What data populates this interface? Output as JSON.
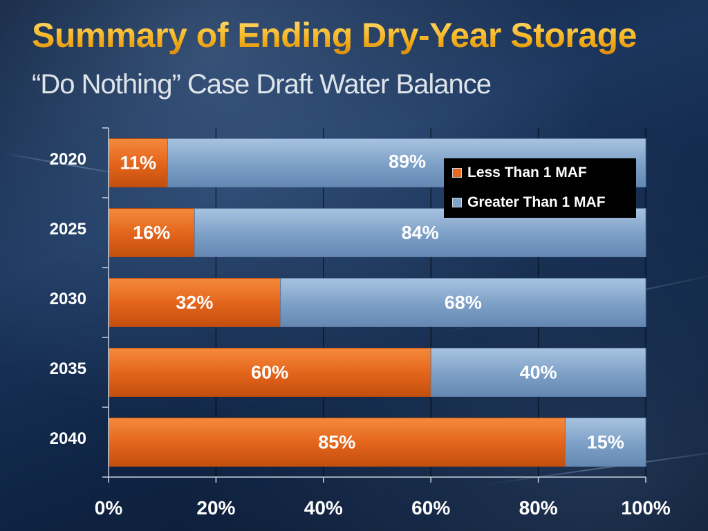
{
  "slide": {
    "title": "Summary of Ending Dry-Year Storage",
    "subtitle": "“Do Nothing” Case Draft Water Balance"
  },
  "colors": {
    "less": "#e8691e",
    "greater": "#7fa3c9",
    "text": "#ffffff"
  },
  "chart_data": {
    "type": "bar",
    "orientation": "horizontal",
    "stacked": true,
    "title": "Summary of Ending Dry-Year Storage",
    "xlabel": "",
    "ylabel": "",
    "categories": [
      "2020",
      "2025",
      "2030",
      "2035",
      "2040"
    ],
    "series": [
      {
        "name": "Less Than 1 MAF",
        "values": [
          11,
          16,
          32,
          60,
          85
        ],
        "labels": [
          "11%",
          "16%",
          "32%",
          "60%",
          "85%"
        ]
      },
      {
        "name": "Greater Than 1 MAF",
        "values": [
          89,
          84,
          68,
          40,
          15
        ],
        "labels": [
          "89%",
          "84%",
          "68%",
          "40%",
          "15%"
        ]
      }
    ],
    "xlim": [
      0,
      100
    ],
    "xticks": [
      "0%",
      "20%",
      "40%",
      "60%",
      "80%",
      "100%"
    ],
    "grid": true,
    "legend_position": "top-right"
  }
}
